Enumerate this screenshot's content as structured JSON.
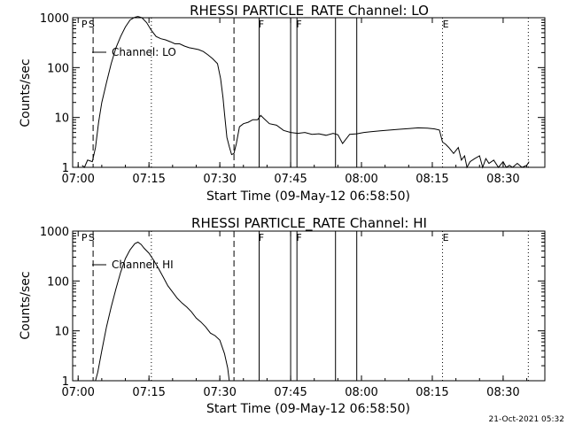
{
  "footer_timestamp": "21-Oct-2021 05:32",
  "chart_data": [
    {
      "type": "line",
      "title": "RHESSI PARTICLE_RATE Channel: LO",
      "xlabel": "Start Time (09-May-12 06:58:50)",
      "ylabel": "Counts/sec",
      "y_scale": "log",
      "xlim": [
        "06:58:50",
        "08:38:50"
      ],
      "ylim": [
        1,
        1000
      ],
      "x_tick_labels": [
        "07:00",
        "07:15",
        "07:30",
        "07:45",
        "08:00",
        "08:15",
        "08:30"
      ],
      "y_tick_labels": [
        "1",
        "10",
        "100",
        "1000"
      ],
      "legend": {
        "label": "Channel: LO",
        "placement": "top-left"
      },
      "flags": [
        {
          "letter": "P",
          "time": "07:00:30"
        },
        {
          "letter": "S",
          "time": "07:02:00"
        },
        {
          "letter": "F",
          "time": "07:38:00"
        },
        {
          "letter": "F",
          "time": "07:46:00"
        },
        {
          "letter": "E",
          "time": "08:17:00"
        }
      ],
      "markers": [
        {
          "time": "07:03:10",
          "style": "dashed"
        },
        {
          "time": "07:15:30",
          "style": "dotted"
        },
        {
          "time": "07:33:00",
          "style": "dashed"
        },
        {
          "time": "07:38:20",
          "style": "solid"
        },
        {
          "time": "07:45:00",
          "style": "solid"
        },
        {
          "time": "07:46:20",
          "style": "solid"
        },
        {
          "time": "07:54:30",
          "style": "solid"
        },
        {
          "time": "07:59:00",
          "style": "solid"
        },
        {
          "time": "08:17:10",
          "style": "dotted"
        },
        {
          "time": "08:35:20",
          "style": "dotted"
        }
      ],
      "series": [
        {
          "name": "Channel: LO",
          "x": [
            "07:00:50",
            "07:01:20",
            "07:02:00",
            "07:03:00",
            "07:03:40",
            "07:04:20",
            "07:05:00",
            "07:06:00",
            "07:07:00",
            "07:08:00",
            "07:09:00",
            "07:10:00",
            "07:11:00",
            "07:12:00",
            "07:12:40",
            "07:13:30",
            "07:14:30",
            "07:15:30",
            "07:16:30",
            "07:17:30",
            "07:18:30",
            "07:19:30",
            "07:20:30",
            "07:21:30",
            "07:22:30",
            "07:23:30",
            "07:24:30",
            "07:25:30",
            "07:26:30",
            "07:27:30",
            "07:28:30",
            "07:29:30",
            "07:30:10",
            "07:30:40",
            "07:31:00",
            "07:31:30",
            "07:32:00",
            "07:32:30",
            "07:33:00",
            "07:33:30",
            "07:34:10",
            "07:35:00",
            "07:36:00",
            "07:37:00",
            "07:38:00",
            "07:38:40",
            "07:39:20",
            "07:40:30",
            "07:42:00",
            "07:43:30",
            "07:45:00",
            "07:46:30",
            "07:48:00",
            "07:49:30",
            "07:51:00",
            "07:52:30",
            "07:54:00",
            "07:55:00",
            "07:56:00",
            "07:57:30",
            "07:59:00",
            "08:00:30",
            "08:02:00",
            "08:04:00",
            "08:06:00",
            "08:08:00",
            "08:10:00",
            "08:12:00",
            "08:14:00",
            "08:15:30",
            "08:16:30",
            "08:17:10",
            "08:17:50",
            "08:18:30",
            "08:19:30",
            "08:20:30",
            "08:21:10",
            "08:21:50",
            "08:22:20",
            "08:23:00",
            "08:24:00",
            "08:25:00",
            "08:25:40",
            "08:26:20",
            "08:27:00",
            "08:28:00",
            "08:29:00",
            "08:30:00",
            "08:30:40",
            "08:31:20",
            "08:32:00",
            "08:33:00",
            "08:34:00",
            "08:35:00",
            "08:35:30"
          ],
          "y": [
            1.1,
            1.0,
            1.4,
            1.3,
            2.5,
            8,
            20,
            50,
            120,
            250,
            420,
            650,
            900,
            1020,
            1060,
            1000,
            800,
            560,
            420,
            380,
            360,
            330,
            300,
            300,
            270,
            250,
            240,
            230,
            210,
            180,
            150,
            120,
            60,
            25,
            12,
            4,
            2.6,
            1.8,
            1.9,
            3.0,
            6.5,
            7.5,
            8.0,
            9.0,
            9.0,
            11.0,
            9.5,
            7.5,
            7.0,
            5.5,
            5.0,
            4.8,
            5.0,
            4.6,
            4.7,
            4.4,
            4.8,
            4.5,
            3.0,
            4.6,
            4.7,
            5.0,
            5.2,
            5.4,
            5.6,
            5.8,
            6.0,
            6.2,
            6.1,
            5.9,
            5.6,
            3.2,
            2.9,
            2.5,
            1.9,
            2.5,
            1.4,
            1.7,
            1.0,
            1.3,
            1.5,
            1.7,
            1.0,
            1.5,
            1.2,
            1.4,
            1.0,
            1.3,
            1.0,
            1.1,
            1.0,
            1.2,
            1.0,
            1.1,
            1.3
          ]
        }
      ]
    },
    {
      "type": "line",
      "title": "RHESSI PARTICLE_RATE Channel: HI",
      "xlabel": "Start Time (09-May-12 06:58:50)",
      "ylabel": "Counts/sec",
      "y_scale": "log",
      "xlim": [
        "06:58:50",
        "08:38:50"
      ],
      "ylim": [
        1,
        1000
      ],
      "x_tick_labels": [
        "07:00",
        "07:15",
        "07:30",
        "07:45",
        "08:00",
        "08:15",
        "08:30"
      ],
      "y_tick_labels": [
        "1",
        "10",
        "100",
        "1000"
      ],
      "legend": {
        "label": "Channel: HI",
        "placement": "top-left"
      },
      "flags": [
        {
          "letter": "P",
          "time": "07:00:30"
        },
        {
          "letter": "S",
          "time": "07:02:00"
        },
        {
          "letter": "F",
          "time": "07:38:00"
        },
        {
          "letter": "F",
          "time": "07:46:00"
        },
        {
          "letter": "E",
          "time": "08:17:00"
        }
      ],
      "markers": [
        {
          "time": "07:03:10",
          "style": "dashed"
        },
        {
          "time": "07:15:30",
          "style": "dotted"
        },
        {
          "time": "07:33:00",
          "style": "dashed"
        },
        {
          "time": "07:38:20",
          "style": "solid"
        },
        {
          "time": "07:45:00",
          "style": "solid"
        },
        {
          "time": "07:46:20",
          "style": "solid"
        },
        {
          "time": "07:54:30",
          "style": "solid"
        },
        {
          "time": "07:59:00",
          "style": "solid"
        },
        {
          "time": "08:17:10",
          "style": "dotted"
        },
        {
          "time": "08:35:20",
          "style": "dotted"
        }
      ],
      "series": [
        {
          "name": "Channel: HI",
          "x": [
            "07:03:40",
            "07:04:10",
            "07:05:00",
            "07:06:00",
            "07:07:00",
            "07:08:00",
            "07:09:00",
            "07:10:00",
            "07:11:00",
            "07:12:00",
            "07:12:40",
            "07:13:20",
            "07:14:00",
            "07:15:00",
            "07:16:00",
            "07:17:00",
            "07:18:00",
            "07:19:00",
            "07:20:00",
            "07:21:00",
            "07:22:00",
            "07:23:00",
            "07:24:00",
            "07:25:00",
            "07:26:00",
            "07:27:00",
            "07:28:00",
            "07:29:00",
            "07:30:00",
            "07:31:00",
            "07:31:40",
            "07:32:00"
          ],
          "y": [
            1.0,
            1.5,
            4,
            12,
            30,
            70,
            150,
            280,
            420,
            560,
            600,
            540,
            450,
            360,
            260,
            180,
            120,
            80,
            60,
            45,
            36,
            30,
            24,
            18,
            15,
            12,
            9,
            8,
            6.5,
            3.5,
            1.8,
            1.0
          ]
        }
      ]
    }
  ]
}
